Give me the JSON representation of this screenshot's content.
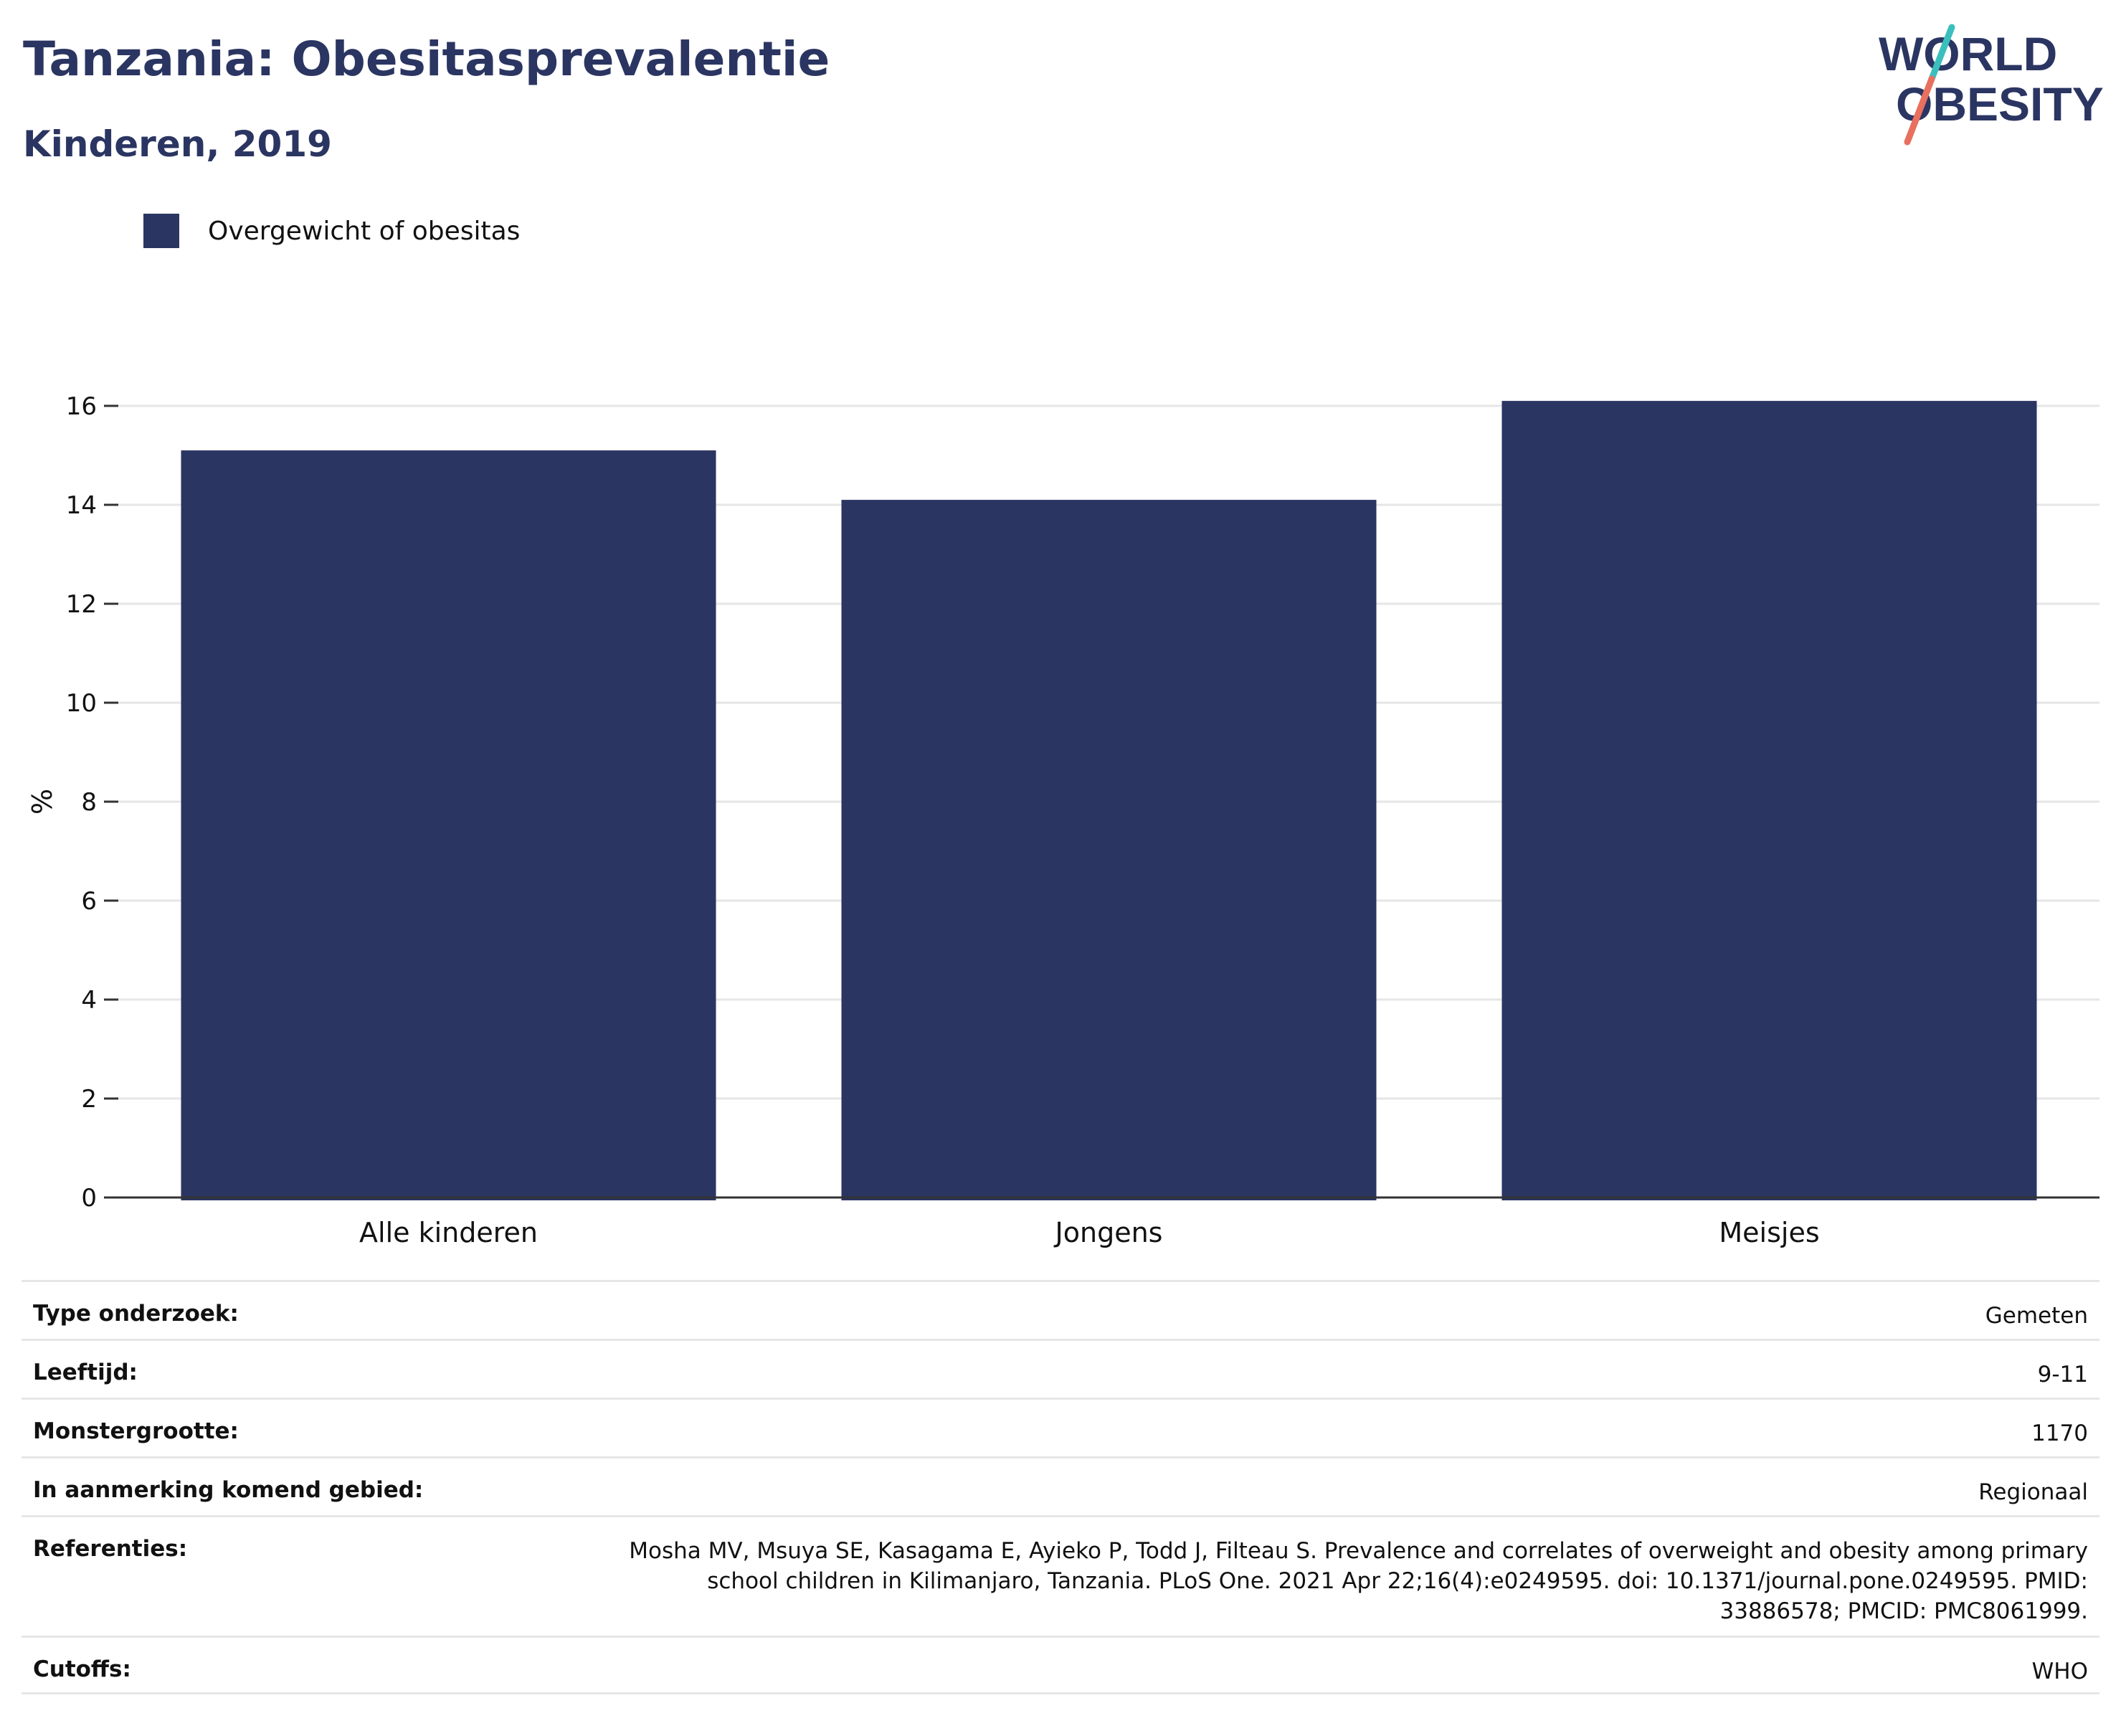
{
  "header": {
    "title": "Tanzania: Obesitasprevalentie",
    "subtitle": "Kinderen, 2019"
  },
  "logo": {
    "line1": "WORLD",
    "line2": "OBESITY",
    "accent_teal": "#3bbfbd",
    "accent_coral": "#e8705f",
    "text_color": "#2b3562"
  },
  "chart_data": {
    "type": "bar",
    "categories": [
      "Alle kinderen",
      "Jongens",
      "Meisjes"
    ],
    "series": [
      {
        "name": "Overgewicht of obesitas",
        "values": [
          15.1,
          14.1,
          16.1
        ],
        "color": "#2b3562"
      }
    ],
    "ylabel": "%",
    "ylim": [
      0,
      16
    ],
    "yticks": [
      "0",
      "2",
      "4",
      "6",
      "8",
      "10",
      "12",
      "14",
      "16"
    ],
    "grid": true,
    "legend_placement": "top-left"
  },
  "meta": [
    {
      "key": "Type onderzoek:",
      "value": "Gemeten"
    },
    {
      "key": "Leeftijd:",
      "value": "9-11"
    },
    {
      "key": "Monstergrootte:",
      "value": "1170"
    },
    {
      "key": "In aanmerking komend gebied:",
      "value": "Regionaal"
    },
    {
      "key": "Referenties:",
      "value": "Mosha MV, Msuya SE, Kasagama E, Ayieko P, Todd J, Filteau S. Prevalence and correlates of overweight and obesity among primary school children in Kilimanjaro, Tanzania. PLoS One. 2021 Apr 22;16(4):e0249595. doi: 10.1371/journal.pone.0249595. PMID: 33886578; PMCID: PMC8061999."
    },
    {
      "key": "Cutoffs:",
      "value": "WHO"
    }
  ]
}
